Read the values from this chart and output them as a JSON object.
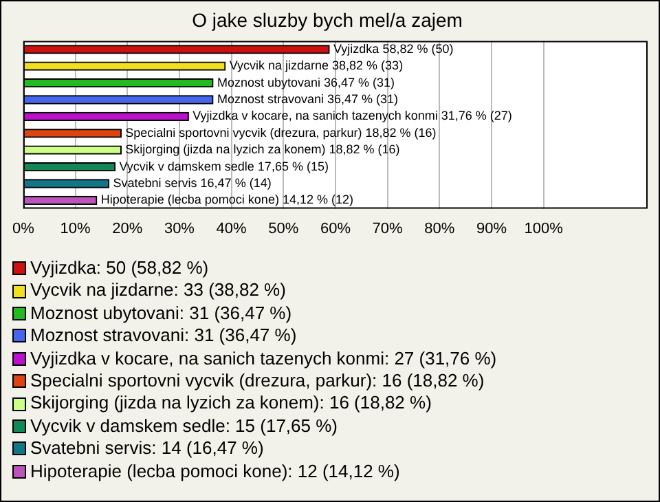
{
  "chart_data": {
    "type": "bar",
    "orientation": "horizontal",
    "title": "O jake sluzby bych mel/a zajem",
    "categories": [
      null,
      null,
      null,
      null,
      null,
      null,
      null,
      null,
      null,
      null
    ],
    "values": [
      58.82,
      38.82,
      36.47,
      36.47,
      31.76,
      18.82,
      18.82,
      17.65,
      16.47,
      14.12
    ],
    "colors": [
      "#cc1111",
      "#f0e020",
      "#22bb22",
      "#4466ee",
      "#bb11cc",
      "#dd4411",
      "#ccff88",
      "#118855",
      "#117788",
      "#bb55bb"
    ],
    "value_labels": [
      "Vyjizdka 58,82 % (50)",
      "Vycvik na jizdarne 38,82 % (33)",
      "Moznost ubytovani 36,47 % (31)",
      "Moznost stravovani 36,47 % (31)",
      "Vyjizdka v kocare, na sanich tazenych konmi 31,76 % (27)",
      "Specialni sportovni vycvik (drezura, parkur) 18,82 % (16)",
      "Skijorging (jizda na lyzich za konem) 18,82 % (16)",
      "Vycvik v damskem sedle 17,65 % (15)",
      "Svatebni servis 16,47 % (14)",
      "Hipoterapie (lecba pomoci kone) 14,12 % (12)"
    ],
    "xlim": [
      0,
      120
    ],
    "xticks": [
      {
        "value": 0,
        "label": "0%"
      },
      {
        "value": 10,
        "label": "10%"
      },
      {
        "value": 20,
        "label": "20%"
      },
      {
        "value": 30,
        "label": "30%"
      },
      {
        "value": 40,
        "label": "40%"
      },
      {
        "value": 50,
        "label": "50%"
      },
      {
        "value": 60,
        "label": "60%"
      },
      {
        "value": 70,
        "label": "70%"
      },
      {
        "value": 80,
        "label": "80%"
      },
      {
        "value": 90,
        "label": "90%"
      },
      {
        "value": 100,
        "label": "100%"
      }
    ],
    "grid": "x",
    "tick_labels": "x",
    "annotations": [
      "Vyjizdka: 50 (58,82 %)",
      "Vycvik na jizdarne: 33 (38,82 %)",
      "Moznost ubytovani: 31 (36,47 %)",
      "Moznost stravovani: 31 (36,47 %)",
      "Vyjizdka v kocare, na sanich tazenych konmi: 27 (31,76 %)",
      "Specialni sportovni vycvik (drezura, parkur): 16 (18,82 %)",
      "Skijorging (jizda na lyzich za konem): 16 (18,82 %)",
      "Vycvik v damskem sedle: 15 (17,65 %)",
      "Svatebni servis: 14 (16,47 %)",
      "Hipoterapie (lecba pomoci kone): 12 (14,12 %)"
    ]
  }
}
